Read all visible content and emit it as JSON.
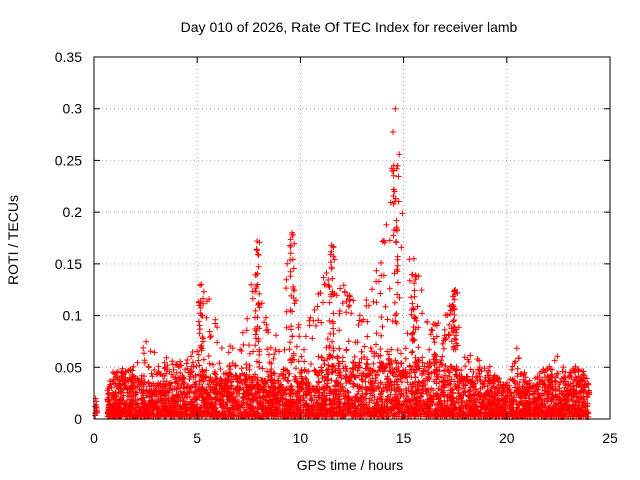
{
  "chart_data": {
    "type": "scatter",
    "title": "Day 010 of 2026, Rate Of TEC Index for receiver lamb",
    "xlabel": "GPS time / hours",
    "ylabel": "ROTI / TECUs",
    "xlim": [
      0,
      25
    ],
    "ylim": [
      0,
      0.35
    ],
    "xticks": [
      0,
      5,
      10,
      15,
      20,
      25
    ],
    "yticks": [
      0,
      0.05,
      0.1,
      0.15,
      0.2,
      0.25,
      0.3,
      0.35
    ],
    "xtick_labels": [
      "0",
      "5",
      "10",
      "15",
      "20",
      "25"
    ],
    "ytick_labels": [
      "0",
      "0.05",
      "0.1",
      "0.15",
      "0.2",
      "0.25",
      "0.3",
      "0.35"
    ],
    "grid": true,
    "marker": "+",
    "color": "#ff0000",
    "series": [
      {
        "name": "ROTI",
        "envelope_hour": [
          0,
          0.7,
          1,
          2,
          2.5,
          3,
          4,
          5,
          5.2,
          6,
          7,
          7.9,
          8.5,
          9,
          9.6,
          10,
          11,
          11.5,
          12,
          12.5,
          13,
          13.5,
          14,
          14.7,
          15,
          15.5,
          16,
          17,
          17.5,
          18,
          19,
          20,
          20.5,
          21,
          22,
          22.5,
          23,
          23.5,
          24
        ],
        "envelope_roti": [
          0.02,
          0.03,
          0.045,
          0.05,
          0.075,
          0.06,
          0.05,
          0.07,
          0.13,
          0.09,
          0.06,
          0.17,
          0.07,
          0.1,
          0.178,
          0.07,
          0.13,
          0.168,
          0.15,
          0.12,
          0.1,
          0.13,
          0.185,
          0.3,
          0.2,
          0.155,
          0.12,
          0.1,
          0.125,
          0.06,
          0.05,
          0.03,
          0.075,
          0.035,
          0.05,
          0.065,
          0.04,
          0.06,
          0.03
        ],
        "peaks": [
          {
            "x": 5.2,
            "y": 0.13
          },
          {
            "x": 7.9,
            "y": 0.172
          },
          {
            "x": 9.6,
            "y": 0.178
          },
          {
            "x": 11.5,
            "y": 0.168
          },
          {
            "x": 14.6,
            "y": 0.3
          },
          {
            "x": 15.5,
            "y": 0.155
          },
          {
            "x": 17.5,
            "y": 0.125
          }
        ]
      }
    ]
  }
}
